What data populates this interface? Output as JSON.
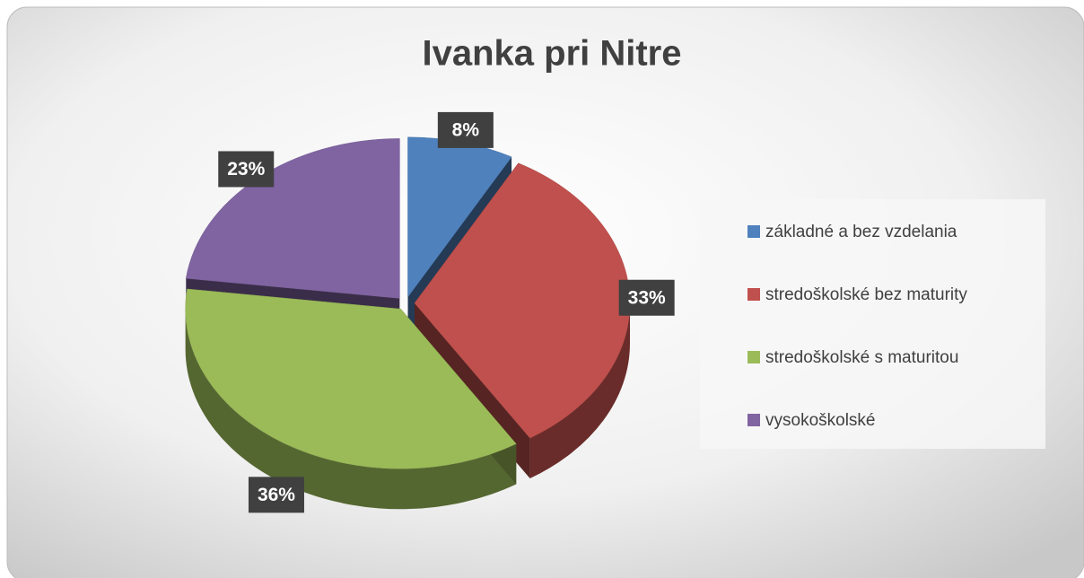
{
  "chart_data": {
    "type": "pie",
    "title": "Ivanka pri Nitre",
    "categories": [
      "základné a bez vzdelania",
      "stredoškolské bez maturity",
      "stredoškolské s maturitou",
      "vysokoškolské"
    ],
    "values": [
      8,
      33,
      36,
      23
    ],
    "value_labels": [
      "8%",
      "33%",
      "36%",
      "23%"
    ],
    "colors": [
      "#4f81bd",
      "#c0504d",
      "#9bbb59",
      "#8064a2"
    ],
    "legend": "right"
  }
}
